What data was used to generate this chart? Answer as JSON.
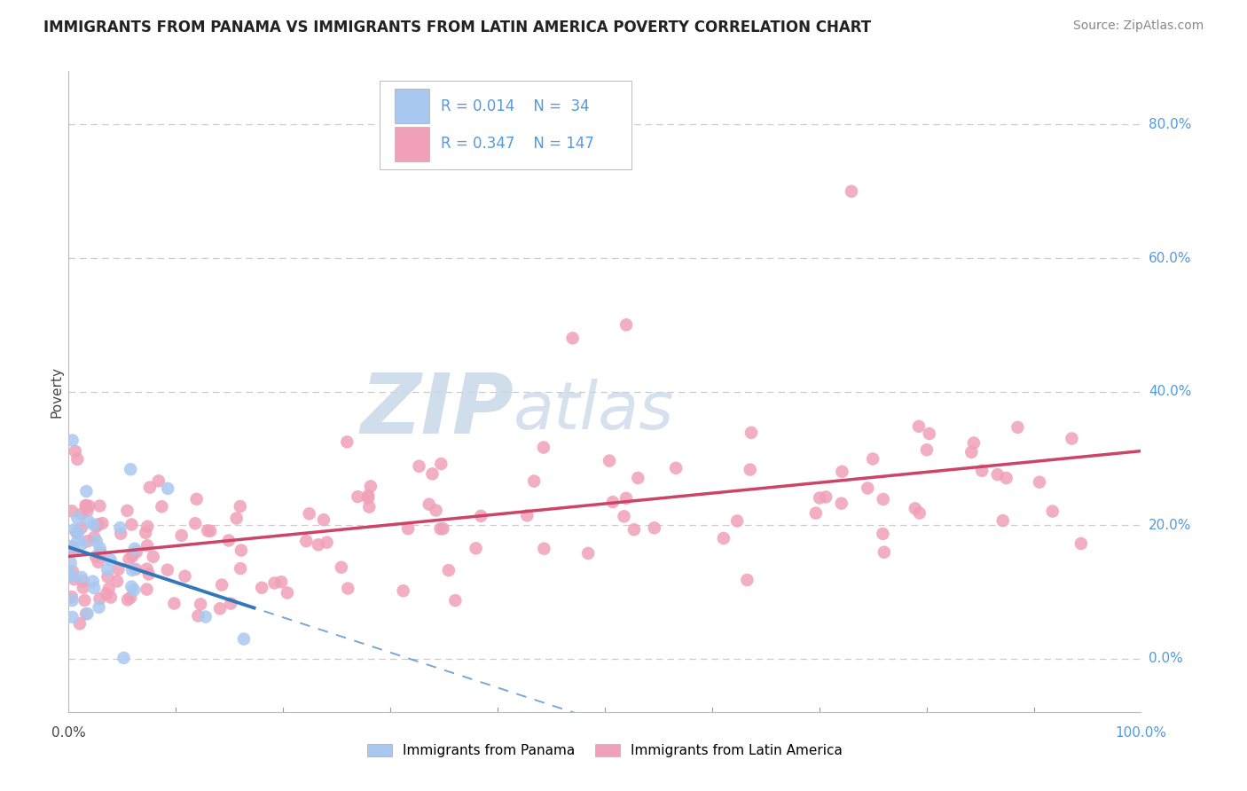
{
  "title": "IMMIGRANTS FROM PANAMA VS IMMIGRANTS FROM LATIN AMERICA POVERTY CORRELATION CHART",
  "source": "Source: ZipAtlas.com",
  "ylabel": "Poverty",
  "xlim": [
    0.0,
    1.0
  ],
  "ylim": [
    -0.08,
    0.88
  ],
  "right_ytick_vals": [
    0.0,
    0.2,
    0.4,
    0.6,
    0.8
  ],
  "right_ytick_labels": [
    "0.0%",
    "20.0%",
    "40.0%",
    "60.0%",
    "80.0%"
  ],
  "right_tick_color": "#5599dd",
  "panama_color": "#a8c8f0",
  "latin_color": "#f0a0b8",
  "panama_line_color": "#3377bb",
  "latin_line_color": "#cc4466",
  "grid_color": "#cccccc",
  "watermark_zip_color": "#c8d8e8",
  "watermark_atlas_color": "#c8d8e8",
  "title_fontsize": 12,
  "legend_r1": "R = 0.014",
  "legend_n1": "N =  34",
  "legend_r2": "R = 0.347",
  "legend_n2": "N = 147",
  "panama_N": 34,
  "latin_N": 147,
  "panama_R": 0.014,
  "latin_R": 0.347
}
